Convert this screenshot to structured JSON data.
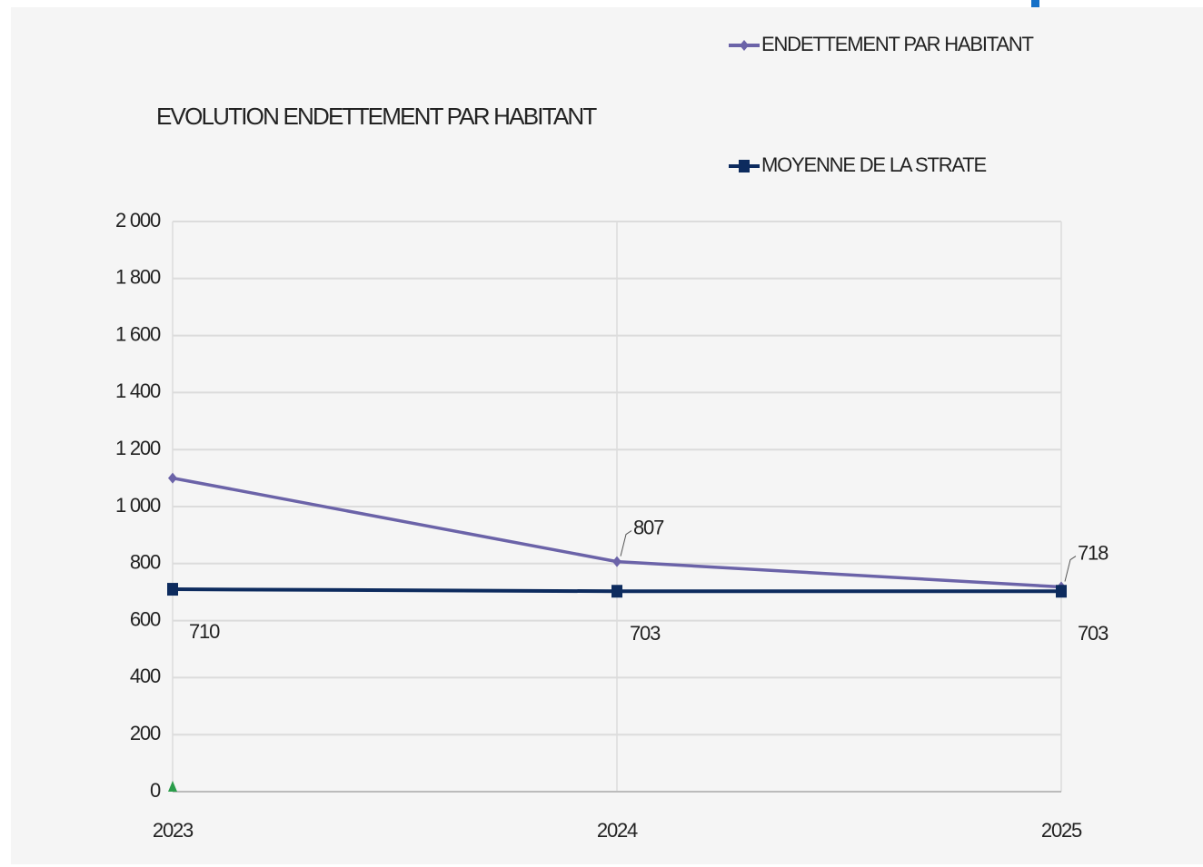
{
  "chart_data": {
    "type": "line",
    "title": "EVOLUTION ENDETTEMENT PAR HABITANT",
    "categories": [
      "2023",
      "2024",
      "2025"
    ],
    "series": [
      {
        "name": "ENDETTEMENT PAR HABITANT",
        "color": "#6b63a8",
        "marker": "diamond",
        "values": [
          1100,
          807,
          718
        ],
        "value_labels": [
          null,
          "807",
          "718"
        ]
      },
      {
        "name": "MOYENNE DE LA STRATE",
        "color": "#0d2b5e",
        "marker": "square",
        "values": [
          710,
          703,
          703
        ]
      }
    ],
    "ylim": [
      0,
      2000
    ],
    "yticks": [
      0,
      200,
      400,
      600,
      800,
      {
        "value": 1000,
        "label": "1 000"
      },
      {
        "value": 1200,
        "label": "1 200"
      },
      {
        "value": 1400,
        "label": "1 400"
      },
      {
        "value": 1600,
        "label": "1 600"
      },
      {
        "value": 1800,
        "label": "1 800"
      },
      {
        "value": 2000,
        "label": "2 000"
      }
    ],
    "grid": true
  }
}
